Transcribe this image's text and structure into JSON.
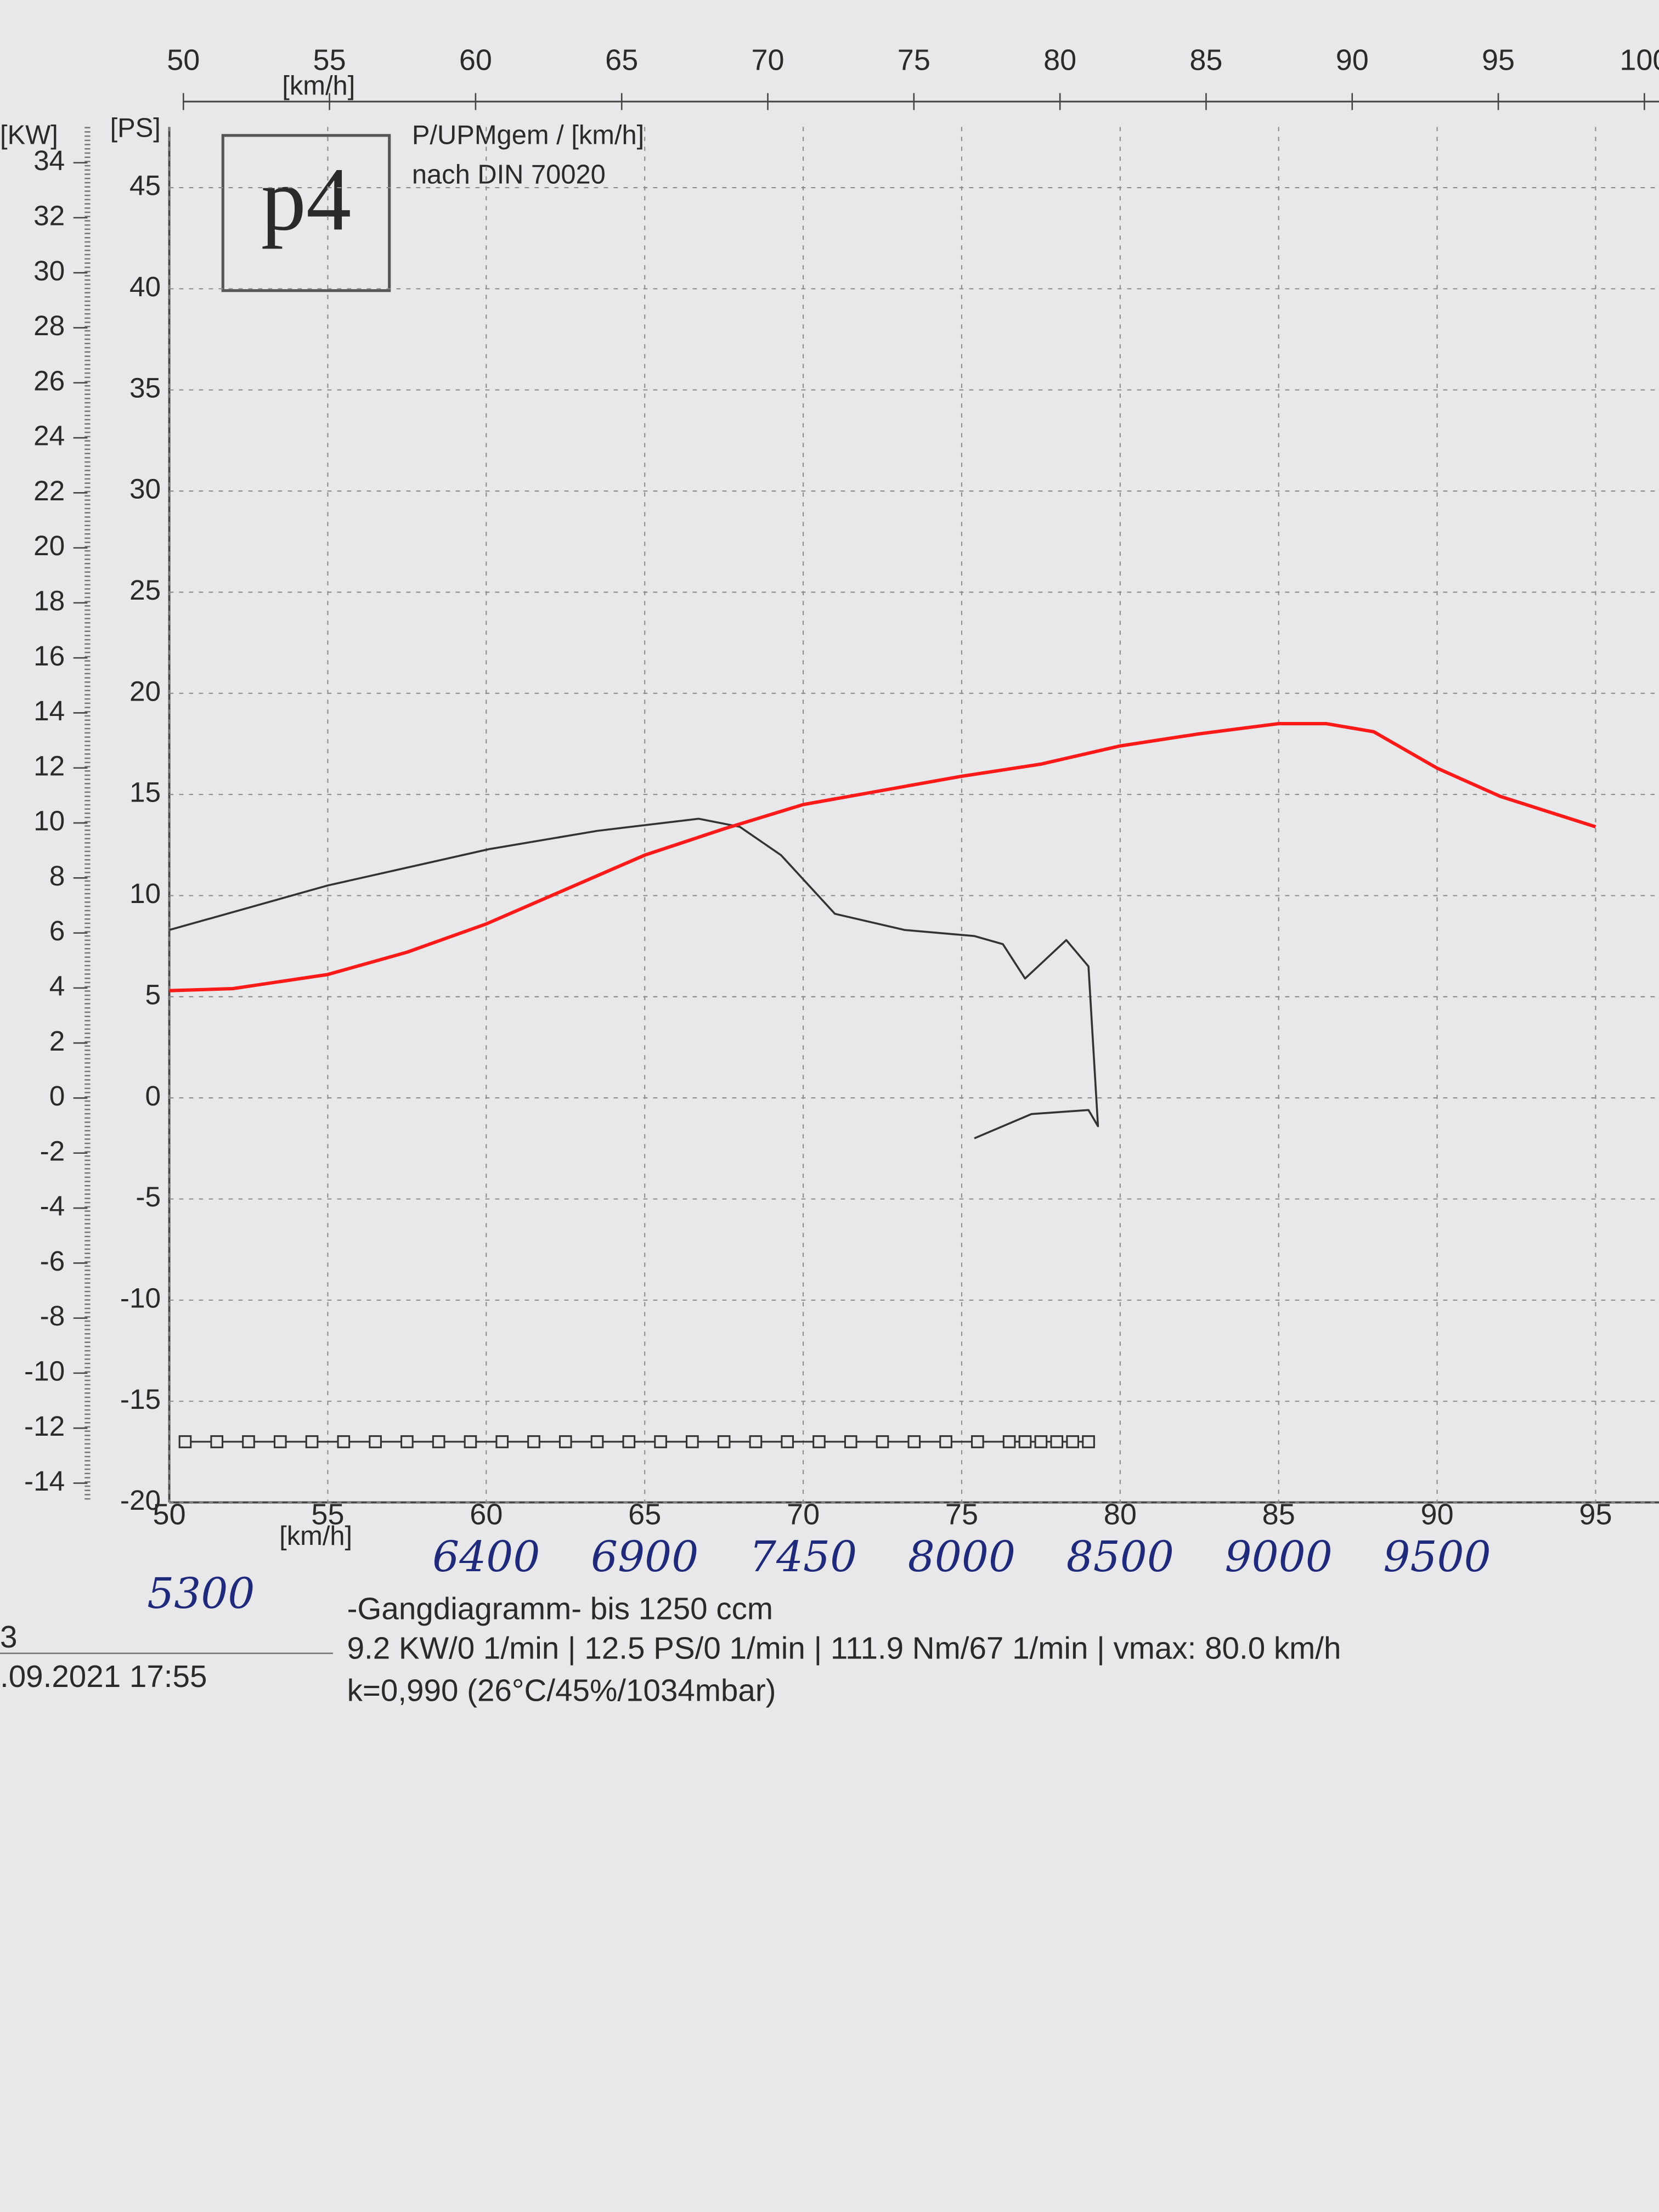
{
  "chart_data": {
    "type": "line",
    "x_label": "[km/h]",
    "x2_label": "[km/h]",
    "y_label": "[PS]",
    "y2_label": "[KW]",
    "logo": "p4",
    "notes": [
      "P/UPMgem / [km/h]",
      "nach DIN 70020"
    ],
    "xlim": [
      50,
      97
    ],
    "xticks": [
      50,
      55,
      60,
      65,
      70,
      75,
      80,
      85,
      90,
      95
    ],
    "x2lim": [
      50,
      100.5
    ],
    "x2ticks": [
      50,
      55,
      60,
      65,
      70,
      75,
      80,
      85,
      90,
      95,
      100
    ],
    "ylim": [
      -20,
      48
    ],
    "yticks": [
      -20,
      -15,
      -10,
      -5,
      0,
      5,
      10,
      15,
      20,
      25,
      30,
      35,
      40,
      45
    ],
    "y2lim": [
      -14.7,
      35.3
    ],
    "y2ticks": [
      -14,
      -12,
      -10,
      -8,
      -6,
      -4,
      -2,
      0,
      2,
      4,
      6,
      8,
      10,
      12,
      14,
      16,
      18,
      20,
      22,
      24,
      26,
      28,
      30,
      32,
      34
    ],
    "grid": true,
    "series": [
      {
        "color": "#333333",
        "x": [
          50,
          55,
          60.1,
          63.5,
          66.7,
          68,
          69.3,
          71,
          73.2,
          75.4,
          76.3,
          77,
          78.3,
          79,
          79.3,
          79,
          77.2,
          75.4
        ],
        "values": [
          8.3,
          10.5,
          12.3,
          13.2,
          13.8,
          13.4,
          12,
          9.1,
          8.3,
          8,
          7.6,
          5.9,
          7.8,
          6.5,
          -1.4,
          -0.6,
          -0.8,
          -2
        ]
      },
      {
        "color": "#ff1a1a",
        "x": [
          50,
          52,
          55,
          57.5,
          60,
          62.5,
          65,
          67.5,
          70,
          72.5,
          75,
          77.5,
          80,
          82.5,
          85,
          86.5,
          88,
          90,
          92,
          95
        ],
        "values": [
          5.3,
          5.4,
          6.1,
          7.2,
          8.6,
          10.3,
          12,
          13.3,
          14.5,
          15.2,
          15.9,
          16.5,
          17.4,
          18,
          18.5,
          18.5,
          18.1,
          16.3,
          14.9,
          13.4
        ]
      },
      {
        "color": "#333333",
        "marker": "square",
        "x": [
          50.5,
          51.5,
          52.5,
          53.5,
          54.5,
          55.5,
          56.5,
          57.5,
          58.5,
          59.5,
          60.5,
          61.5,
          62.5,
          63.5,
          64.5,
          65.5,
          66.5,
          67.5,
          68.5,
          69.5,
          70.5,
          71.5,
          72.5,
          73.5,
          74.5,
          75.5,
          76.5,
          77,
          77.5,
          78,
          78.5,
          79
        ],
        "values": [
          -17,
          -17,
          -17,
          -17,
          -17,
          -17,
          -17,
          -17,
          -17,
          -17,
          -17,
          -17,
          -17,
          -17,
          -17,
          -17,
          -17,
          -17,
          -17,
          -17,
          -17,
          -17,
          -17,
          -17,
          -17,
          -17,
          -17,
          -17,
          -17,
          -17,
          -17,
          -17
        ]
      }
    ],
    "rpm_labels": [
      {
        "x": 51,
        "label": "5300"
      },
      {
        "x": 60,
        "label": "6400"
      },
      {
        "x": 65,
        "label": "6900"
      },
      {
        "x": 70,
        "label": "7450"
      },
      {
        "x": 75,
        "label": "8000"
      },
      {
        "x": 80,
        "label": "8500"
      },
      {
        "x": 85,
        "label": "9000"
      },
      {
        "x": 90,
        "label": "9500"
      }
    ],
    "footer": {
      "id": "3",
      "date": ".09.2021  17:55",
      "lines": [
        "-Gangdiagramm- bis 1250 ccm",
        "9.2 KW/0 1/min  |  12.5 PS/0 1/min  |  111.9 Nm/67 1/min |  vmax: 80.0 km/h",
        "k=0,990 (26°C/45%/1034mbar)"
      ]
    }
  }
}
